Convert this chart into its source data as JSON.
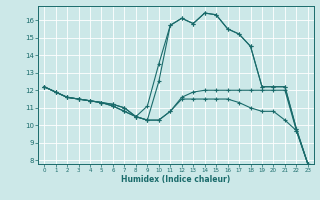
{
  "xlabel": "Humidex (Indice chaleur)",
  "background_color": "#cce8e8",
  "line_color": "#1a6b6b",
  "grid_color": "#ffffff",
  "xlim": [
    -0.5,
    23.5
  ],
  "ylim": [
    7.8,
    16.8
  ],
  "yticks": [
    8,
    9,
    10,
    11,
    12,
    13,
    14,
    15,
    16
  ],
  "xticks": [
    0,
    1,
    2,
    3,
    4,
    5,
    6,
    7,
    8,
    9,
    10,
    11,
    12,
    13,
    14,
    15,
    16,
    17,
    18,
    19,
    20,
    21,
    22,
    23
  ],
  "lines": [
    {
      "x": [
        0,
        1,
        2,
        3,
        4,
        5,
        6,
        7,
        8,
        9,
        10,
        11,
        12,
        13,
        14,
        15,
        16,
        17,
        18,
        19,
        20,
        21,
        22,
        23
      ],
      "y": [
        12.2,
        11.9,
        11.6,
        11.5,
        11.4,
        11.3,
        11.1,
        10.8,
        10.5,
        10.3,
        10.3,
        10.8,
        11.5,
        11.5,
        11.5,
        11.5,
        11.5,
        11.3,
        11.0,
        10.8,
        10.8,
        10.3,
        9.7,
        7.8
      ]
    },
    {
      "x": [
        0,
        1,
        2,
        3,
        4,
        5,
        6,
        7,
        8,
        9,
        10,
        11,
        12,
        13,
        14,
        15,
        16,
        17,
        18,
        19,
        20,
        21,
        22,
        23
      ],
      "y": [
        12.2,
        11.9,
        11.6,
        11.5,
        11.4,
        11.3,
        11.1,
        10.8,
        10.5,
        10.3,
        10.3,
        10.8,
        11.6,
        11.9,
        12.0,
        12.0,
        12.0,
        12.0,
        12.0,
        12.0,
        12.0,
        12.0,
        9.7,
        7.8
      ]
    },
    {
      "x": [
        0,
        1,
        2,
        3,
        4,
        5,
        6,
        7,
        8,
        9,
        10,
        11,
        12,
        13,
        14,
        15,
        16,
        17,
        18,
        19,
        20,
        21,
        22,
        23
      ],
      "y": [
        12.2,
        11.9,
        11.6,
        11.5,
        11.4,
        11.3,
        11.2,
        11.0,
        10.5,
        11.1,
        13.5,
        15.7,
        16.1,
        15.8,
        16.4,
        16.3,
        15.5,
        15.2,
        14.5,
        12.2,
        12.2,
        12.2,
        9.8,
        7.8
      ]
    },
    {
      "x": [
        0,
        1,
        2,
        3,
        4,
        5,
        6,
        7,
        8,
        9,
        10,
        11,
        12,
        13,
        14,
        15,
        16,
        17,
        18,
        19,
        20,
        21,
        22,
        23
      ],
      "y": [
        12.2,
        11.9,
        11.6,
        11.5,
        11.4,
        11.3,
        11.2,
        11.0,
        10.5,
        10.3,
        12.5,
        15.7,
        16.1,
        15.8,
        16.4,
        16.3,
        15.5,
        15.2,
        14.5,
        12.2,
        12.2,
        12.2,
        9.8,
        7.8
      ]
    }
  ]
}
